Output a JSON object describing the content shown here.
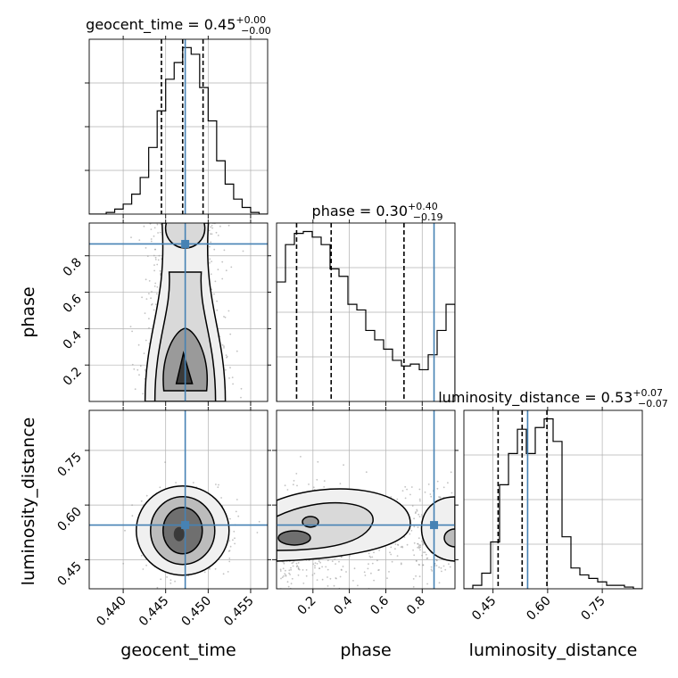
{
  "colors": {
    "truth": "#4682b4",
    "hist": "#000000",
    "quantile": "#000000",
    "grid": "#b0b0b0",
    "points": "#9a9a9a"
  },
  "chart_data": {
    "type": "corner",
    "parameters": [
      "geocent_time",
      "phase",
      "luminosity_distance"
    ],
    "grid": true,
    "truths": {
      "geocent_time": 0.4473,
      "phase": 0.865,
      "luminosity_distance": 0.545
    },
    "axes": {
      "geocent_time": {
        "range": [
          0.436,
          0.457
        ],
        "ticks": [
          0.44,
          0.445,
          0.45,
          0.455
        ],
        "tick_labels": [
          "0.440",
          "0.445",
          "0.450",
          "0.455"
        ],
        "xlabel": "geocent_time"
      },
      "phase": {
        "range": [
          0.0,
          0.98
        ],
        "ticks": [
          0.2,
          0.4,
          0.6,
          0.8
        ],
        "tick_labels": [
          "0.2",
          "0.4",
          "0.6",
          "0.8"
        ],
        "xlabel": "phase",
        "ylabel": "phase"
      },
      "luminosity_distance": {
        "range": [
          0.37,
          0.86
        ],
        "ticks": [
          0.45,
          0.6,
          0.75
        ],
        "tick_labels": [
          "0.45",
          "0.60",
          "0.75"
        ],
        "xlabel": "luminosity_distance",
        "ylabel": "luminosity_distance"
      }
    },
    "marginals": [
      {
        "parameter": "geocent_time",
        "title": "geocent_time = 0.45",
        "title_sup": "+0.00",
        "title_sub": "−0.00",
        "bin_edges": [
          0.436,
          0.437,
          0.438,
          0.439,
          0.44,
          0.441,
          0.442,
          0.443,
          0.444,
          0.445,
          0.446,
          0.447,
          0.448,
          0.449,
          0.45,
          0.451,
          0.452,
          0.453,
          0.454,
          0.455,
          0.456,
          0.457
        ],
        "counts": [
          0,
          0,
          1,
          3,
          6,
          12,
          22,
          40,
          62,
          81,
          91,
          100,
          96,
          76,
          56,
          32,
          18,
          9,
          4,
          1,
          0
        ],
        "quantiles": [
          0.4445,
          0.447,
          0.4494
        ]
      },
      {
        "parameter": "phase",
        "title": "phase = 0.30",
        "title_sup": "+0.40",
        "title_sub": "−0.19",
        "bin_edges": [
          0.0,
          0.049,
          0.098,
          0.147,
          0.196,
          0.245,
          0.294,
          0.343,
          0.392,
          0.441,
          0.49,
          0.539,
          0.588,
          0.637,
          0.686,
          0.735,
          0.784,
          0.833,
          0.882,
          0.931,
          0.98
        ],
        "counts": [
          64,
          84,
          90,
          91,
          88,
          84,
          71,
          67,
          52,
          49,
          38,
          33,
          28,
          22,
          19,
          20,
          17,
          25,
          38,
          52
        ],
        "quantiles": [
          0.11,
          0.3,
          0.7
        ]
      },
      {
        "parameter": "luminosity_distance",
        "title": "luminosity_distance = 0.53",
        "title_sup": "+0.07",
        "title_sub": "−0.07",
        "bin_edges": [
          0.37,
          0.3945,
          0.419,
          0.4435,
          0.468,
          0.4925,
          0.517,
          0.5415,
          0.566,
          0.5905,
          0.615,
          0.6395,
          0.664,
          0.6885,
          0.713,
          0.7375,
          0.762,
          0.7865,
          0.811,
          0.8355,
          0.86
        ],
        "counts": [
          0,
          2,
          9,
          27,
          60,
          78,
          92,
          78,
          93,
          98,
          85,
          30,
          12,
          8,
          6,
          4,
          2,
          2,
          1,
          0
        ],
        "quantiles": [
          0.464,
          0.53,
          0.598
        ]
      }
    ],
    "pairs": [
      {
        "x": "geocent_time",
        "y": "phase",
        "center": [
          0.4473,
          0.2
        ],
        "spread": [
          0.0022,
          0.45
        ]
      },
      {
        "x": "geocent_time",
        "y": "luminosity_distance",
        "center": [
          0.447,
          0.53
        ],
        "spread": [
          0.0023,
          0.05
        ]
      },
      {
        "x": "phase",
        "y": "luminosity_distance",
        "center": [
          0.3,
          0.52
        ],
        "spread": [
          0.3,
          0.05
        ]
      }
    ]
  }
}
